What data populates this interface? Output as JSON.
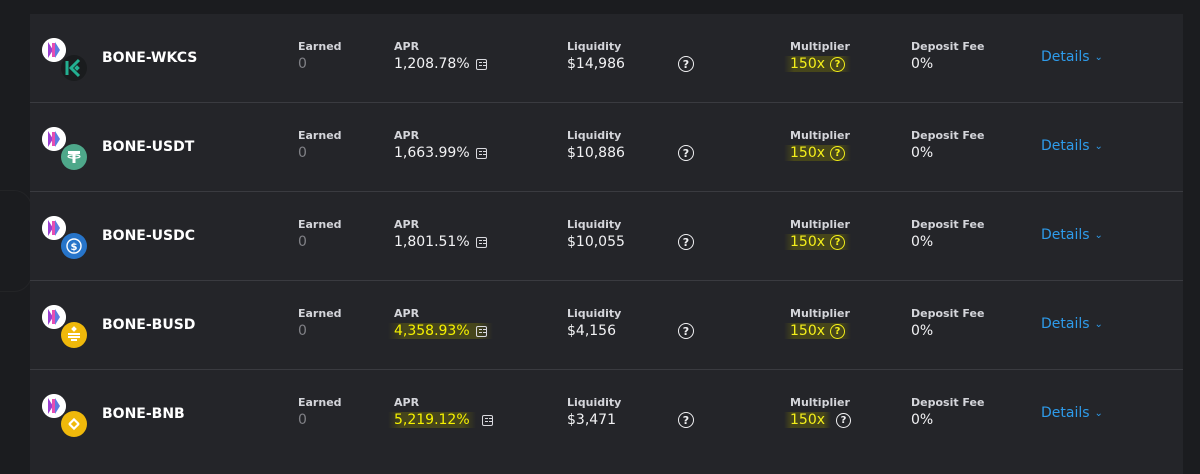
{
  "labels": {
    "earned": "Earned",
    "apr": "APR",
    "liquidity": "Liquidity",
    "multiplier": "Multiplier",
    "deposit_fee": "Deposit Fee",
    "details": "Details"
  },
  "farms": [
    {
      "pair": "BONE-WKCS",
      "earned": "0",
      "apr": "1,208.78%",
      "liquidity": "$14,986",
      "multiplier": "150x",
      "deposit_fee": "0%",
      "token_b_icon": "kcs-icon",
      "token_b_color": "#1a1c1e",
      "apr_highlight": false,
      "mult_highlight": true
    },
    {
      "pair": "BONE-USDT",
      "earned": "0",
      "apr": "1,663.99%",
      "liquidity": "$10,886",
      "multiplier": "150x",
      "deposit_fee": "0%",
      "token_b_icon": "usdt-icon",
      "token_b_color": "#4ea88a",
      "apr_highlight": false,
      "mult_highlight": true
    },
    {
      "pair": "BONE-USDC",
      "earned": "0",
      "apr": "1,801.51%",
      "liquidity": "$10,055",
      "multiplier": "150x",
      "deposit_fee": "0%",
      "token_b_icon": "usdc-icon",
      "token_b_color": "#2775ca",
      "apr_highlight": false,
      "mult_highlight": true
    },
    {
      "pair": "BONE-BUSD",
      "earned": "0",
      "apr": "4,358.93%",
      "liquidity": "$4,156",
      "multiplier": "150x",
      "deposit_fee": "0%",
      "token_b_icon": "busd-icon",
      "token_b_color": "#f0b90b",
      "apr_highlight": true,
      "mult_highlight": true
    },
    {
      "pair": "BONE-BNB",
      "earned": "0",
      "apr": "5,219.12%",
      "liquidity": "$3,471",
      "multiplier": "150x",
      "deposit_fee": "0%",
      "token_b_icon": "bnb-icon",
      "token_b_color": "#f0b90b",
      "apr_highlight": true,
      "mult_highlight": true
    }
  ],
  "colors": {
    "accent_link": "#2e9bea",
    "highlight_text": "#f4ef1a",
    "panel": "#242529",
    "background": "#1b1c1f"
  }
}
